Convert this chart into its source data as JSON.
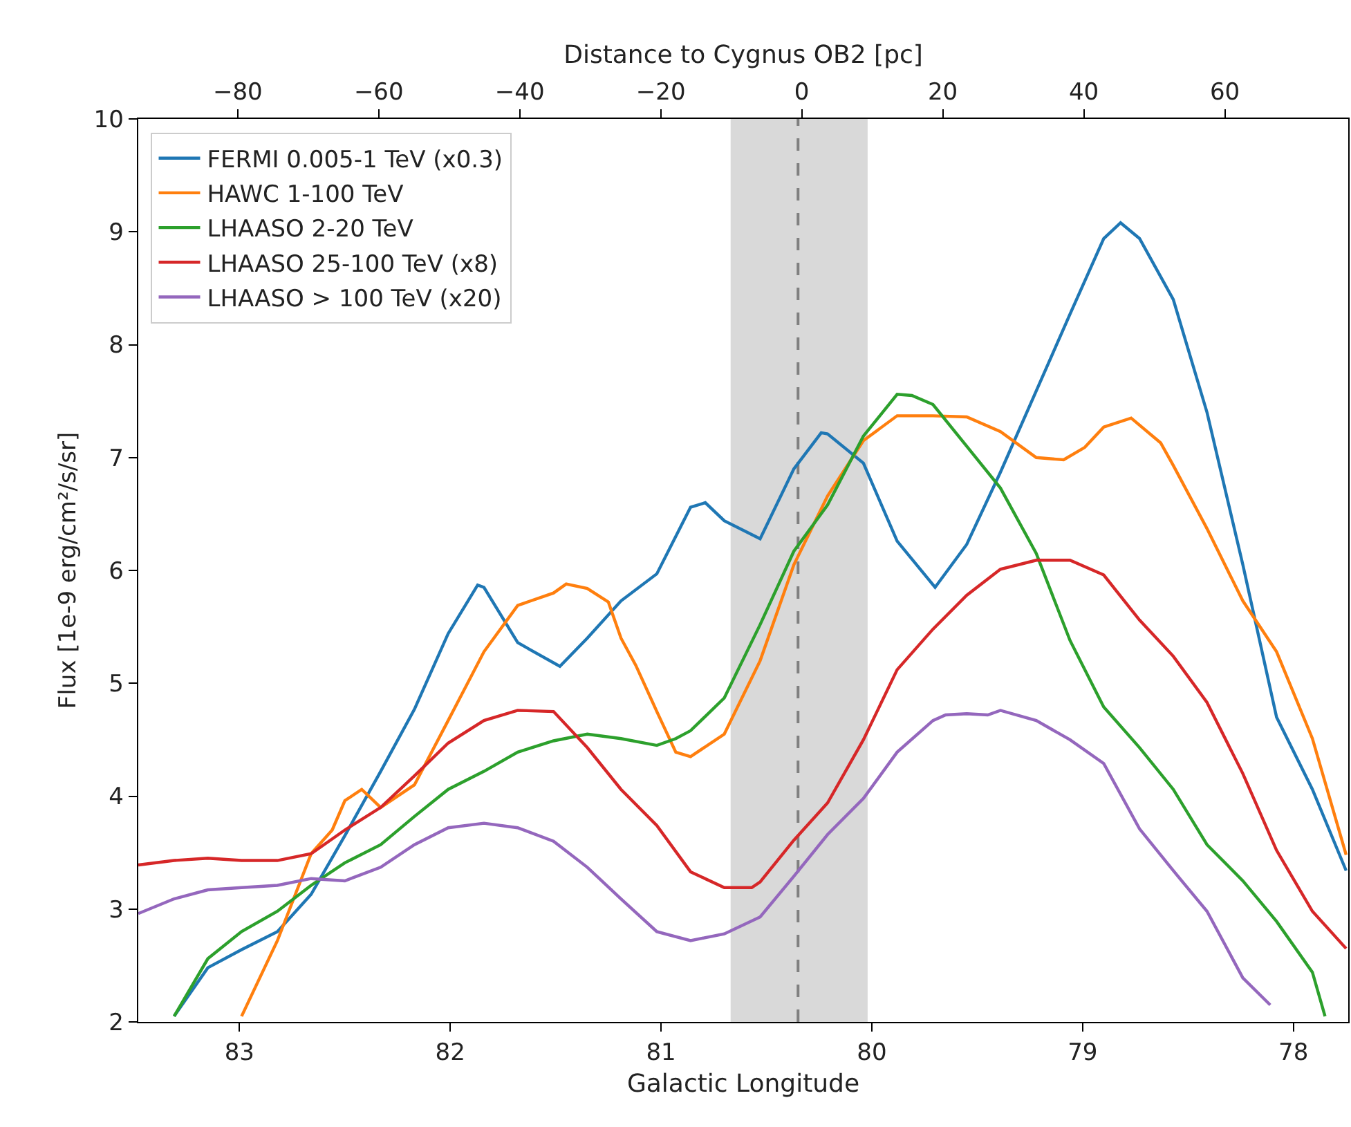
{
  "chart_data": {
    "type": "line",
    "xlabel": "Galactic Longitude",
    "ylabel": "Flux [1e-9 erg/cm²/s/sr]",
    "x2label": "Distance to Cygnus OB2 [pc]",
    "xlim": [
      83.48,
      77.74
    ],
    "xticks": [
      83,
      82,
      81,
      80,
      79,
      78
    ],
    "ylim": [
      2,
      10
    ],
    "yticks": [
      2,
      3,
      4,
      5,
      6,
      7,
      8,
      9,
      10
    ],
    "x2lim": [
      -94.1,
      77.5
    ],
    "x2ticks": [
      -80,
      -60,
      -40,
      -20,
      0,
      20,
      40,
      60
    ],
    "grid": false,
    "legend": "top left",
    "line_style": "solid",
    "marker": "none",
    "bands": [
      {
        "axis": "x",
        "from": 80.67,
        "to": 80.02,
        "color": "#d9d9d9"
      }
    ],
    "ref_lines": [
      {
        "axis": "x",
        "value": 80.35,
        "color": "#808080",
        "line_style": "dashed"
      }
    ],
    "series": [
      {
        "name": "FERMI 0.005-1 TeV (x0.3)",
        "color": "#1f77b4",
        "x": [
          83.31,
          83.15,
          82.99,
          82.82,
          82.66,
          82.5,
          82.33,
          82.17,
          82.01,
          81.87,
          81.84,
          81.68,
          81.48,
          81.35,
          81.19,
          81.02,
          80.86,
          80.79,
          80.7,
          80.53,
          80.37,
          80.24,
          80.21,
          80.04,
          79.88,
          79.7,
          79.55,
          79.39,
          79.22,
          79.06,
          78.9,
          78.82,
          78.73,
          78.57,
          78.41,
          78.24,
          78.08,
          77.91,
          77.75
        ],
        "values": [
          2.05,
          2.48,
          2.64,
          2.8,
          3.13,
          3.65,
          4.22,
          4.77,
          5.44,
          5.87,
          5.85,
          5.36,
          5.15,
          5.4,
          5.73,
          5.97,
          6.56,
          6.6,
          6.44,
          6.28,
          6.9,
          7.22,
          7.21,
          6.95,
          6.26,
          5.85,
          6.23,
          6.87,
          7.59,
          8.27,
          8.94,
          9.08,
          8.94,
          8.4,
          7.4,
          6.05,
          4.7,
          4.06,
          3.34
        ]
      },
      {
        "name": "HAWC 1-100 TeV",
        "color": "#ff7f0e",
        "x": [
          82.99,
          82.82,
          82.66,
          82.56,
          82.5,
          82.42,
          82.33,
          82.17,
          82.01,
          81.84,
          81.68,
          81.51,
          81.45,
          81.35,
          81.25,
          81.19,
          81.12,
          81.02,
          80.93,
          80.86,
          80.7,
          80.53,
          80.37,
          80.21,
          80.04,
          79.88,
          79.71,
          79.55,
          79.39,
          79.22,
          79.09,
          78.99,
          78.9,
          78.77,
          78.63,
          78.57,
          78.41,
          78.24,
          78.08,
          77.91,
          77.75
        ],
        "values": [
          2.05,
          2.72,
          3.49,
          3.7,
          3.96,
          4.06,
          3.9,
          4.1,
          4.67,
          5.28,
          5.69,
          5.8,
          5.88,
          5.84,
          5.72,
          5.4,
          5.16,
          4.75,
          4.39,
          4.35,
          4.55,
          5.2,
          6.05,
          6.66,
          7.15,
          7.37,
          7.37,
          7.36,
          7.23,
          7.0,
          6.98,
          7.09,
          7.27,
          7.35,
          7.13,
          6.93,
          6.37,
          5.73,
          5.28,
          4.51,
          3.48
        ]
      },
      {
        "name": "LHAASO 2-20 TeV",
        "color": "#2ca02c",
        "x": [
          83.31,
          83.15,
          82.99,
          82.82,
          82.66,
          82.5,
          82.33,
          82.17,
          82.01,
          81.84,
          81.68,
          81.51,
          81.35,
          81.19,
          81.02,
          80.93,
          80.86,
          80.7,
          80.53,
          80.37,
          80.21,
          80.04,
          79.88,
          79.81,
          79.71,
          79.55,
          79.39,
          79.22,
          79.06,
          78.9,
          78.73,
          78.57,
          78.41,
          78.24,
          78.08,
          77.91,
          77.85
        ],
        "values": [
          2.05,
          2.56,
          2.8,
          2.98,
          3.21,
          3.41,
          3.57,
          3.82,
          4.06,
          4.22,
          4.39,
          4.49,
          4.55,
          4.51,
          4.45,
          4.51,
          4.58,
          4.87,
          5.52,
          6.17,
          6.58,
          7.19,
          7.56,
          7.55,
          7.47,
          7.1,
          6.73,
          6.15,
          5.38,
          4.79,
          4.43,
          4.06,
          3.57,
          3.25,
          2.89,
          2.44,
          2.05
        ]
      },
      {
        "name": "LHAASO 25-100 TeV (x8)",
        "color": "#d62728",
        "x": [
          83.48,
          83.31,
          83.15,
          82.99,
          82.82,
          82.66,
          82.5,
          82.33,
          82.17,
          82.01,
          81.84,
          81.68,
          81.51,
          81.35,
          81.19,
          81.02,
          80.86,
          80.7,
          80.57,
          80.53,
          80.37,
          80.21,
          80.04,
          79.88,
          79.71,
          79.55,
          79.39,
          79.22,
          79.06,
          78.9,
          78.73,
          78.57,
          78.41,
          78.24,
          78.08,
          77.91,
          77.75
        ],
        "values": [
          3.39,
          3.43,
          3.45,
          3.43,
          3.43,
          3.49,
          3.7,
          3.9,
          4.18,
          4.47,
          4.67,
          4.76,
          4.75,
          4.43,
          4.06,
          3.74,
          3.33,
          3.19,
          3.19,
          3.24,
          3.61,
          3.94,
          4.5,
          5.12,
          5.48,
          5.78,
          6.01,
          6.09,
          6.09,
          5.96,
          5.56,
          5.24,
          4.83,
          4.2,
          3.52,
          2.98,
          2.65
        ]
      },
      {
        "name": "LHAASO > 100 TeV (x20)",
        "color": "#9467bd",
        "x": [
          83.48,
          83.31,
          83.15,
          82.99,
          82.82,
          82.66,
          82.5,
          82.33,
          82.17,
          82.01,
          81.84,
          81.68,
          81.51,
          81.35,
          81.19,
          81.02,
          80.86,
          80.7,
          80.53,
          80.37,
          80.21,
          80.04,
          79.88,
          79.71,
          79.65,
          79.55,
          79.45,
          79.39,
          79.22,
          79.06,
          78.9,
          78.73,
          78.57,
          78.41,
          78.24,
          78.11
        ],
        "values": [
          2.96,
          3.09,
          3.17,
          3.19,
          3.21,
          3.27,
          3.25,
          3.37,
          3.57,
          3.72,
          3.76,
          3.72,
          3.6,
          3.37,
          3.09,
          2.8,
          2.72,
          2.78,
          2.93,
          3.29,
          3.66,
          3.98,
          4.39,
          4.67,
          4.72,
          4.73,
          4.72,
          4.76,
          4.67,
          4.5,
          4.29,
          3.71,
          3.34,
          2.98,
          2.39,
          2.15
        ]
      }
    ]
  }
}
